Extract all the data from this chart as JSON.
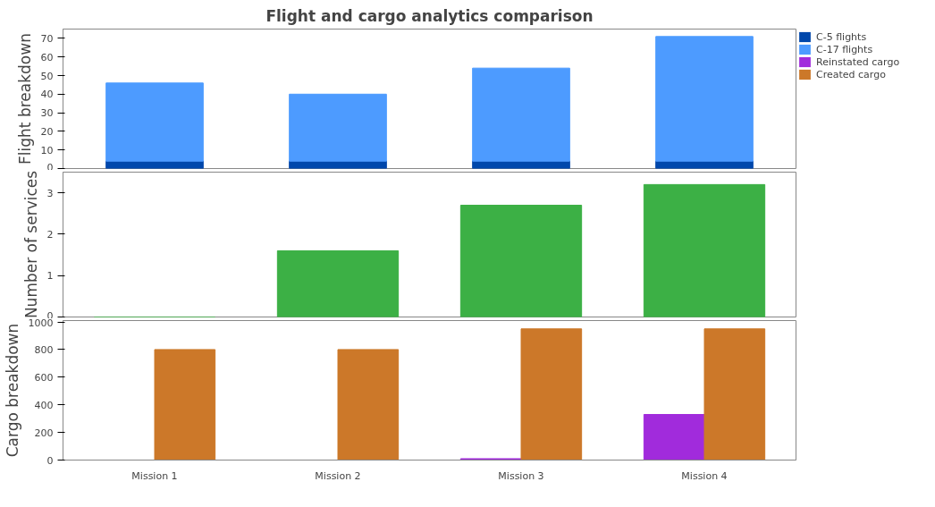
{
  "chart_data": [
    {
      "type": "bar",
      "title": "Flight and cargo analytics comparison",
      "ylabel": "Flight breakdown",
      "categories": [
        null,
        null,
        null,
        null
      ],
      "stacked": true,
      "tick_labels": "y",
      "legend": "top right",
      "ylim": [
        0,
        75
      ],
      "yticks": [
        0,
        10,
        20,
        30,
        40,
        50,
        60,
        70
      ],
      "series": [
        {
          "name": "C-5 flights",
          "color": "#0047ab",
          "values": [
            4,
            4,
            4,
            4
          ]
        },
        {
          "name": "C-17 flights",
          "color": "#4d9bff",
          "values": [
            42,
            36,
            50,
            67
          ]
        }
      ]
    },
    {
      "type": "bar",
      "ylabel": "Number of services",
      "categories": [
        null,
        null,
        null,
        null
      ],
      "tick_labels": "y",
      "ylim": [
        0,
        3.5
      ],
      "yticks": [
        0,
        1,
        2,
        3
      ],
      "series": [
        {
          "color": "#3cb045",
          "values": [
            0,
            1.6,
            2.7,
            3.2
          ]
        }
      ]
    },
    {
      "type": "bar",
      "ylabel": "Cargo breakdown",
      "legend": "top right",
      "categories": [
        "Mission 1",
        "Mission 2",
        "Mission 3",
        "Mission 4"
      ],
      "ylim": [
        0,
        1010
      ],
      "yticks": [
        0,
        200,
        400,
        600,
        800,
        1000
      ],
      "series": [
        {
          "name": "Reinstated cargo",
          "color": "#a12bdc",
          "values": [
            0,
            0,
            10,
            330
          ]
        },
        {
          "name": "Created cargo",
          "color": "#cc7829",
          "values": [
            800,
            800,
            950,
            950
          ]
        }
      ]
    }
  ]
}
